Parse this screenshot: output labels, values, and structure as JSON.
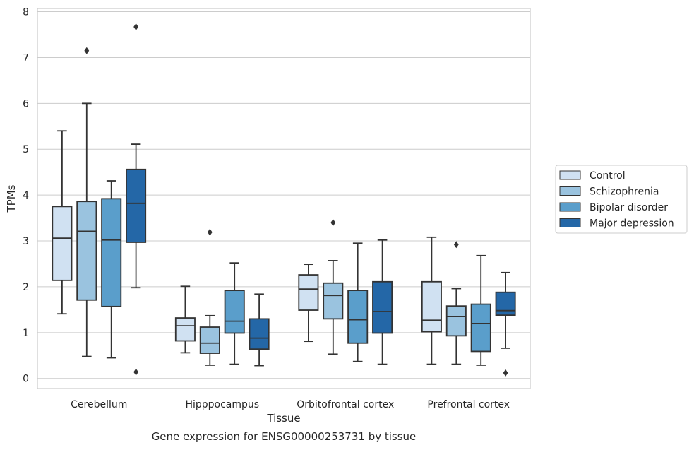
{
  "chart_data": {
    "type": "box",
    "xlabel": "Tissue",
    "ylabel": "TPMs",
    "caption": "Gene expression for ENSG00000253731 by tissue",
    "ylim": [
      -0.22,
      8.07
    ],
    "yticks": [
      0,
      1,
      2,
      3,
      4,
      5,
      6,
      7,
      8
    ],
    "grid": "horizontal",
    "legend_position": "right, outside",
    "categories": [
      "Cerebellum",
      "Hipppocampus",
      "Orbitofrontal cortex",
      "Prefrontal cortex"
    ],
    "series": [
      {
        "name": "Control",
        "color": "#d0e1f2",
        "boxes": [
          {
            "whislo": 1.41,
            "q1": 2.14,
            "med": 3.06,
            "q3": 3.75,
            "whishi": 5.4,
            "fliers": []
          },
          {
            "whislo": 0.56,
            "q1": 0.82,
            "med": 1.15,
            "q3": 1.32,
            "whishi": 2.01,
            "fliers": []
          },
          {
            "whislo": 0.81,
            "q1": 1.49,
            "med": 1.95,
            "q3": 2.26,
            "whishi": 2.49,
            "fliers": []
          },
          {
            "whislo": 0.31,
            "q1": 1.02,
            "med": 1.27,
            "q3": 2.11,
            "whishi": 3.08,
            "fliers": []
          }
        ]
      },
      {
        "name": "Schizophrenia",
        "color": "#9ac3df",
        "boxes": [
          {
            "whislo": 0.48,
            "q1": 1.71,
            "med": 3.21,
            "q3": 3.86,
            "whishi": 6.0,
            "fliers": [
              7.15
            ]
          },
          {
            "whislo": 0.29,
            "q1": 0.55,
            "med": 0.77,
            "q3": 1.12,
            "whishi": 1.37,
            "fliers": [
              3.19
            ]
          },
          {
            "whislo": 0.53,
            "q1": 1.3,
            "med": 1.81,
            "q3": 2.08,
            "whishi": 2.57,
            "fliers": [
              3.4
            ]
          },
          {
            "whislo": 0.31,
            "q1": 0.93,
            "med": 1.35,
            "q3": 1.58,
            "whishi": 1.96,
            "fliers": [
              2.92
            ]
          }
        ]
      },
      {
        "name": "Bipolar disorder",
        "color": "#5a9ecb",
        "boxes": [
          {
            "whislo": 0.45,
            "q1": 1.57,
            "med": 3.02,
            "q3": 3.92,
            "whishi": 4.31,
            "fliers": []
          },
          {
            "whislo": 0.31,
            "q1": 0.99,
            "med": 1.25,
            "q3": 1.92,
            "whishi": 2.52,
            "fliers": []
          },
          {
            "whislo": 0.37,
            "q1": 0.77,
            "med": 1.28,
            "q3": 1.92,
            "whishi": 2.95,
            "fliers": []
          },
          {
            "whislo": 0.29,
            "q1": 0.59,
            "med": 1.2,
            "q3": 1.62,
            "whishi": 2.68,
            "fliers": []
          }
        ]
      },
      {
        "name": "Major depression",
        "color": "#2467a7",
        "boxes": [
          {
            "whislo": 1.98,
            "q1": 2.97,
            "med": 3.82,
            "q3": 4.56,
            "whishi": 5.11,
            "fliers": [
              7.67,
              0.14
            ]
          },
          {
            "whislo": 0.28,
            "q1": 0.64,
            "med": 0.88,
            "q3": 1.3,
            "whishi": 1.84,
            "fliers": []
          },
          {
            "whislo": 0.31,
            "q1": 0.99,
            "med": 1.46,
            "q3": 2.11,
            "whishi": 3.02,
            "fliers": []
          },
          {
            "whislo": 0.66,
            "q1": 1.38,
            "med": 1.48,
            "q3": 1.88,
            "whishi": 2.31,
            "fliers": [
              0.12
            ]
          }
        ]
      }
    ]
  }
}
